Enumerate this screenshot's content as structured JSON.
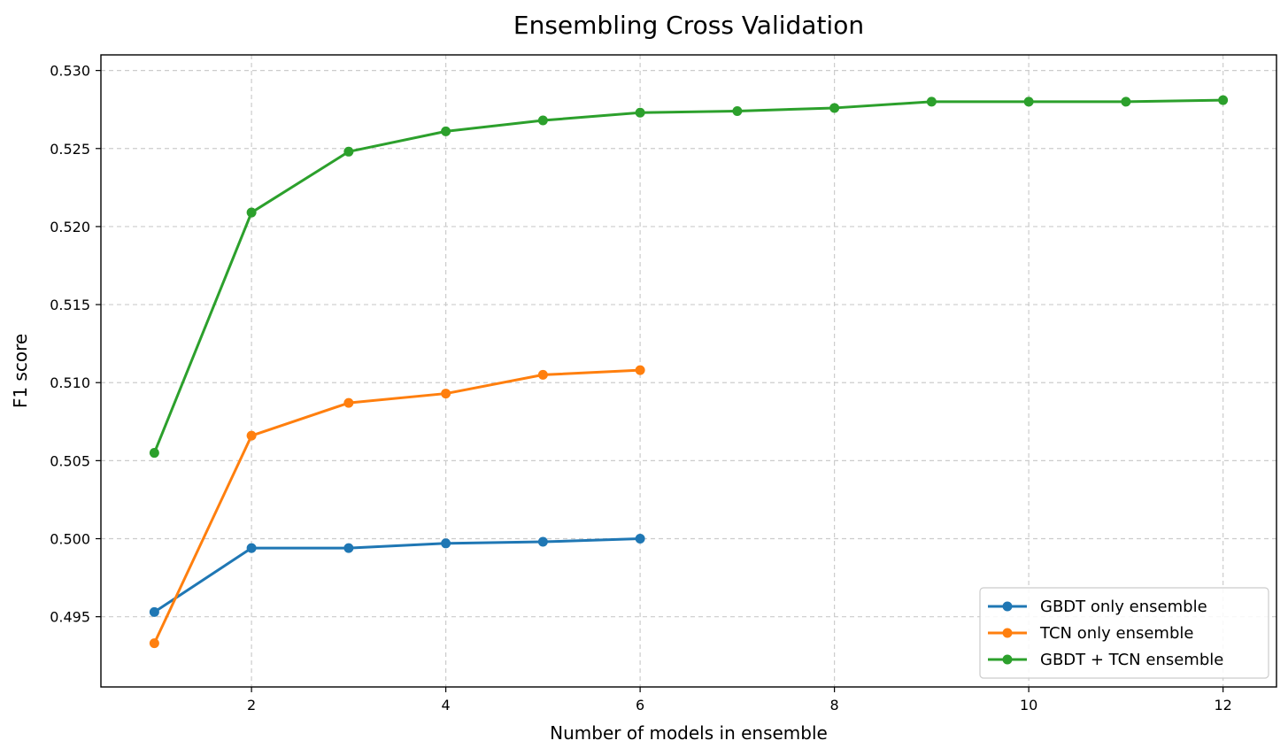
{
  "chart_data": {
    "type": "line",
    "title": "Ensembling Cross Validation",
    "xlabel": "Number of models in ensemble",
    "ylabel": "F1 score",
    "xlim": [
      0.45,
      12.55
    ],
    "ylim": [
      0.4905,
      0.531
    ],
    "xticks": [
      2,
      4,
      6,
      8,
      10,
      12
    ],
    "yticks": [
      0.495,
      0.5,
      0.505,
      0.51,
      0.515,
      0.52,
      0.525,
      0.53
    ],
    "ytick_labels": [
      "0.495",
      "0.500",
      "0.505",
      "0.510",
      "0.515",
      "0.520",
      "0.525",
      "0.530"
    ],
    "grid": true,
    "legend_position": "bottom-right",
    "series": [
      {
        "name": "GBDT only ensemble",
        "color": "#1f77b4",
        "x": [
          1,
          2,
          3,
          4,
          5,
          6
        ],
        "values": [
          0.4953,
          0.4994,
          0.4994,
          0.4997,
          0.4998,
          0.5
        ]
      },
      {
        "name": "TCN only ensemble",
        "color": "#ff7f0e",
        "x": [
          1,
          2,
          3,
          4,
          5,
          6
        ],
        "values": [
          0.4933,
          0.5066,
          0.5087,
          0.5093,
          0.5105,
          0.5108
        ]
      },
      {
        "name": "GBDT + TCN ensemble",
        "color": "#2ca02c",
        "x": [
          1,
          2,
          3,
          4,
          5,
          6,
          7,
          8,
          9,
          10,
          11,
          12
        ],
        "values": [
          0.5055,
          0.5209,
          0.5248,
          0.5261,
          0.5268,
          0.5273,
          0.5274,
          0.5276,
          0.528,
          0.528,
          0.528,
          0.5281
        ]
      }
    ]
  }
}
